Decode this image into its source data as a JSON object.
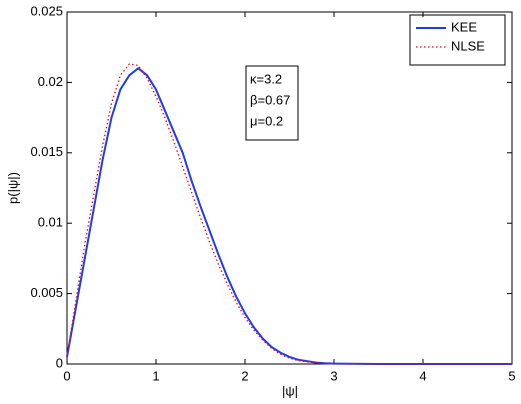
{
  "chart_data": {
    "type": "line",
    "xlabel": "|ψ|",
    "ylabel": "p(|ψ|)",
    "x": [
      0,
      0.1,
      0.2,
      0.3,
      0.4,
      0.5,
      0.6,
      0.7,
      0.8,
      0.9,
      1.0,
      1.1,
      1.2,
      1.3,
      1.4,
      1.5,
      1.6,
      1.7,
      1.8,
      1.9,
      2.0,
      2.1,
      2.2,
      2.3,
      2.4,
      2.5,
      2.6,
      2.7,
      2.8,
      2.9,
      3.0,
      3.5,
      4.0,
      4.5,
      5.0
    ],
    "series": [
      {
        "name": "KEE",
        "color": "#1c3cf0",
        "style": "solid",
        "values": [
          0.0005,
          0.004,
          0.0075,
          0.011,
          0.0145,
          0.0175,
          0.0195,
          0.0205,
          0.021,
          0.0205,
          0.0195,
          0.018,
          0.0165,
          0.015,
          0.013,
          0.0112,
          0.0095,
          0.0078,
          0.0062,
          0.0048,
          0.0036,
          0.0026,
          0.0018,
          0.0012,
          0.0008,
          0.0005,
          0.0003,
          0.0002,
          0.0001,
          5e-05,
          3e-05,
          0,
          0,
          0,
          0
        ]
      },
      {
        "name": "NLSE",
        "color": "#ff0000",
        "style": "dotted",
        "values": [
          0.0005,
          0.0045,
          0.0085,
          0.012,
          0.0155,
          0.0185,
          0.0205,
          0.0213,
          0.0212,
          0.0203,
          0.019,
          0.0175,
          0.0158,
          0.014,
          0.0122,
          0.0104,
          0.0087,
          0.0071,
          0.0057,
          0.0044,
          0.0033,
          0.0024,
          0.0017,
          0.0011,
          0.0007,
          0.0004,
          0.00025,
          0.00015,
          0.0001,
          5e-05,
          2e-05,
          0,
          0,
          0,
          0
        ]
      }
    ],
    "xlim": [
      0,
      5
    ],
    "xticks": [
      0,
      1,
      2,
      3,
      4,
      5
    ],
    "ylim": [
      0,
      0.025
    ],
    "yticks": [
      0,
      0.005,
      0.01,
      0.015,
      0.02,
      0.025
    ],
    "grid": false,
    "legend": "upper right",
    "annotations": [
      "κ=3.2",
      "β=0.67",
      "μ=0.2"
    ]
  }
}
